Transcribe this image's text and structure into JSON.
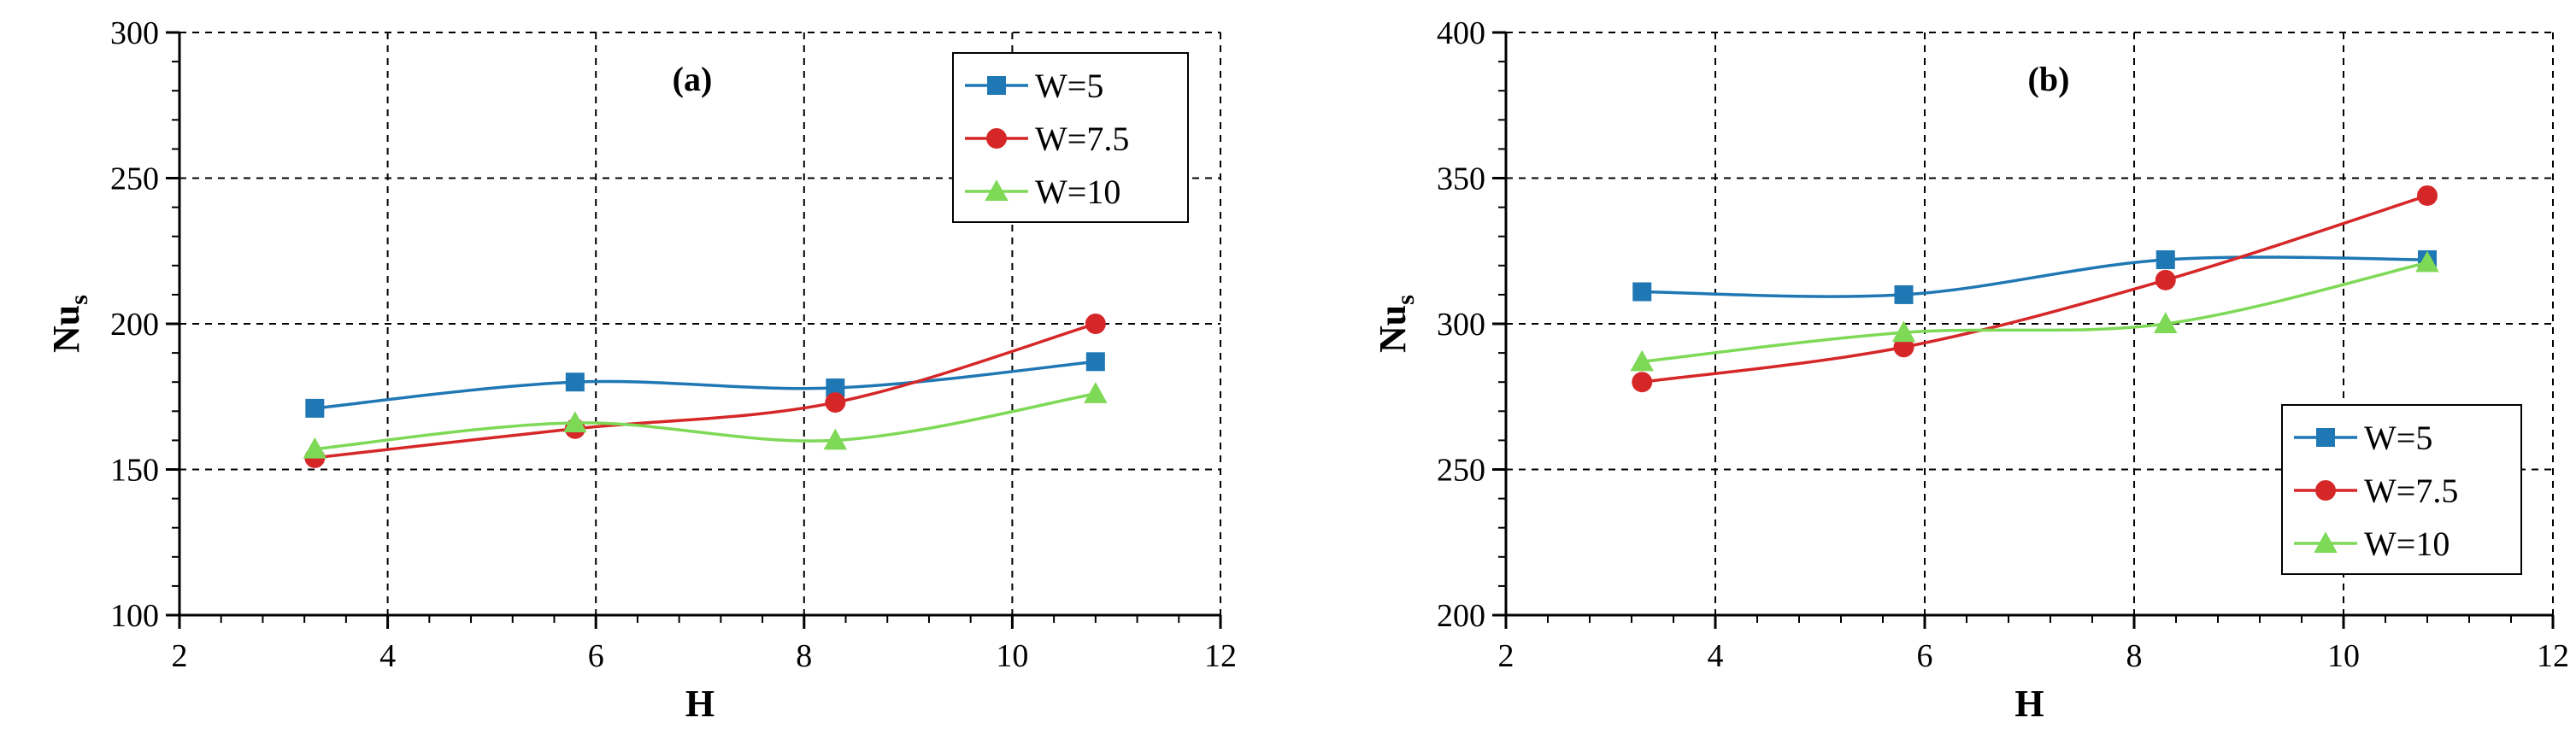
{
  "chart_data": [
    {
      "type": "line",
      "panel_label": "(a)",
      "xlabel": "H",
      "ylabel_main": "Nu",
      "ylabel_sub": "s",
      "xlim": [
        2,
        12
      ],
      "ylim": [
        100,
        300
      ],
      "xticks": [
        2,
        4,
        6,
        8,
        10,
        12
      ],
      "yticks": [
        100,
        150,
        200,
        250,
        300
      ],
      "grid": true,
      "legend_position": "top-right",
      "series": [
        {
          "name": "W=5",
          "marker": "square",
          "color": "#1f77b4",
          "x": [
            3.3,
            5.8,
            8.3,
            10.8
          ],
          "y": [
            171,
            180,
            178,
            187
          ]
        },
        {
          "name": "W=7.5",
          "marker": "circle",
          "color": "#d62728",
          "x": [
            3.3,
            5.8,
            8.3,
            10.8
          ],
          "y": [
            154,
            164,
            173,
            200
          ]
        },
        {
          "name": "W=10",
          "marker": "triangle",
          "color": "#7ed957",
          "x": [
            3.3,
            5.8,
            8.3,
            10.8
          ],
          "y": [
            157,
            166,
            160,
            176
          ]
        }
      ]
    },
    {
      "type": "line",
      "panel_label": "(b)",
      "xlabel": "H",
      "ylabel_main": "Nu",
      "ylabel_sub": "s",
      "xlim": [
        2,
        12
      ],
      "ylim": [
        200,
        400
      ],
      "xticks": [
        2,
        4,
        6,
        8,
        10,
        12
      ],
      "yticks": [
        200,
        250,
        300,
        350,
        400
      ],
      "grid": true,
      "legend_position": "bottom-right",
      "series": [
        {
          "name": "W=5",
          "marker": "square",
          "color": "#1f77b4",
          "x": [
            3.3,
            5.8,
            8.3,
            10.8
          ],
          "y": [
            311,
            310,
            322,
            322
          ]
        },
        {
          "name": "W=7.5",
          "marker": "circle",
          "color": "#d62728",
          "x": [
            3.3,
            5.8,
            8.3,
            10.8
          ],
          "y": [
            280,
            292,
            315,
            344
          ]
        },
        {
          "name": "W=10",
          "marker": "triangle",
          "color": "#7ed957",
          "x": [
            3.3,
            5.8,
            8.3,
            10.8
          ],
          "y": [
            287,
            297,
            300,
            321
          ]
        }
      ]
    }
  ]
}
